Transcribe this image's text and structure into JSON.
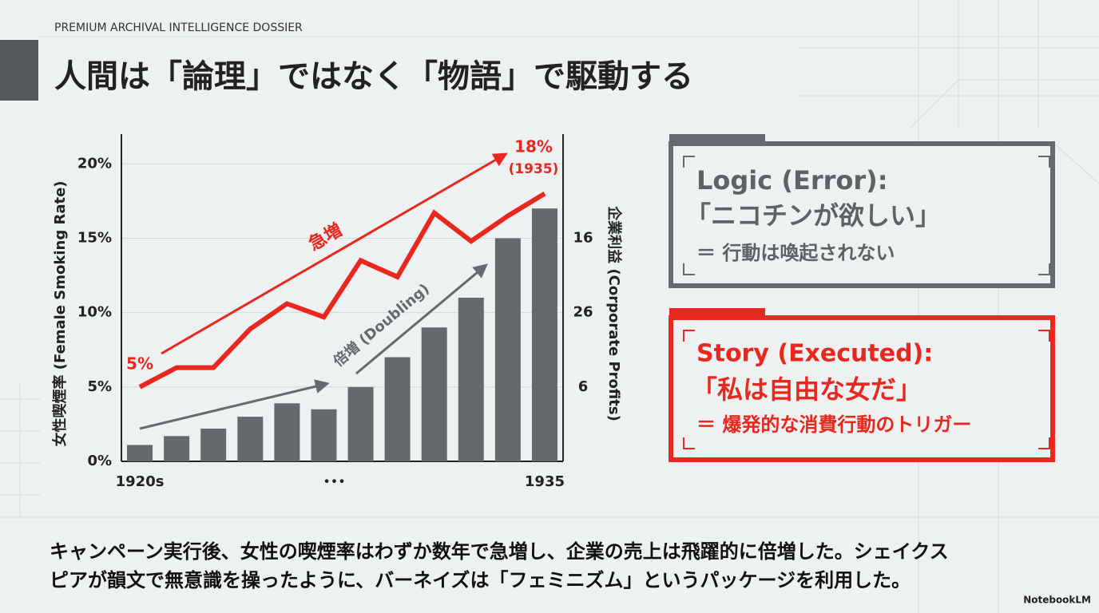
{
  "header": {
    "kicker": "PREMIUM ARCHIVAL INTELLIGENCE DOSSIER",
    "title": "人間は「論理」ではなく「物語」で駆動する"
  },
  "chart_data": {
    "type": "bar",
    "categories": [
      "1920s",
      null,
      null,
      null,
      null,
      null,
      null,
      null,
      null,
      null,
      null,
      "1935"
    ],
    "x_gap_label": "•••",
    "series": [
      {
        "type": "bar",
        "color": "#65696b",
        "values": [
          1.1,
          1.7,
          2.2,
          3,
          3.9,
          3.5,
          5,
          7,
          9,
          11,
          15,
          17
        ]
      },
      {
        "type": "line",
        "color": "#e8281e",
        "values": [
          5,
          6.3,
          6.3,
          8.9,
          10.6,
          9.7,
          13.5,
          12.4,
          16.7,
          14.8,
          16.5,
          18
        ],
        "value_labels": [
          "5%",
          null,
          null,
          null,
          null,
          null,
          null,
          null,
          null,
          null,
          null,
          "18%"
        ]
      }
    ],
    "ylim": [
      0,
      22
    ],
    "yticks": [
      {
        "value": 0,
        "label": "0%"
      },
      {
        "value": 5,
        "label": "5%"
      },
      {
        "value": 10,
        "label": "10%"
      },
      {
        "value": 15,
        "label": "15%"
      },
      {
        "value": 20,
        "label": "20%"
      }
    ],
    "y_label": "女性喫煙率 (Female Smoking Rate)",
    "y2_label": "企業利益 (Corporate Profits)",
    "y2_labels": [
      "6",
      "26",
      "16"
    ],
    "annotations": {
      "surge": "急増",
      "doubling": "倍増 (Doubling)",
      "end_year": "(1935)"
    }
  },
  "logic_box": {
    "heading": "Logic (Error):",
    "quote": "「ニコチンが欲しい」",
    "result": "＝ 行動は喚起されない"
  },
  "story_box": {
    "heading": "Story (Executed):",
    "quote": "「私は自由な女だ」",
    "result": "＝ 爆発的な消費行動のトリガー"
  },
  "caption": [
    "キャンペーン実行後、女性の喫煙率はわずか数年で急増し、企業の売上は飛躍的に倍増した。シェイクス",
    "ピアが韻文で無意識を操ったように、バーネイズは「フェミニズム」というパッケージを利用した。"
  ],
  "brand": "NotebookLM"
}
